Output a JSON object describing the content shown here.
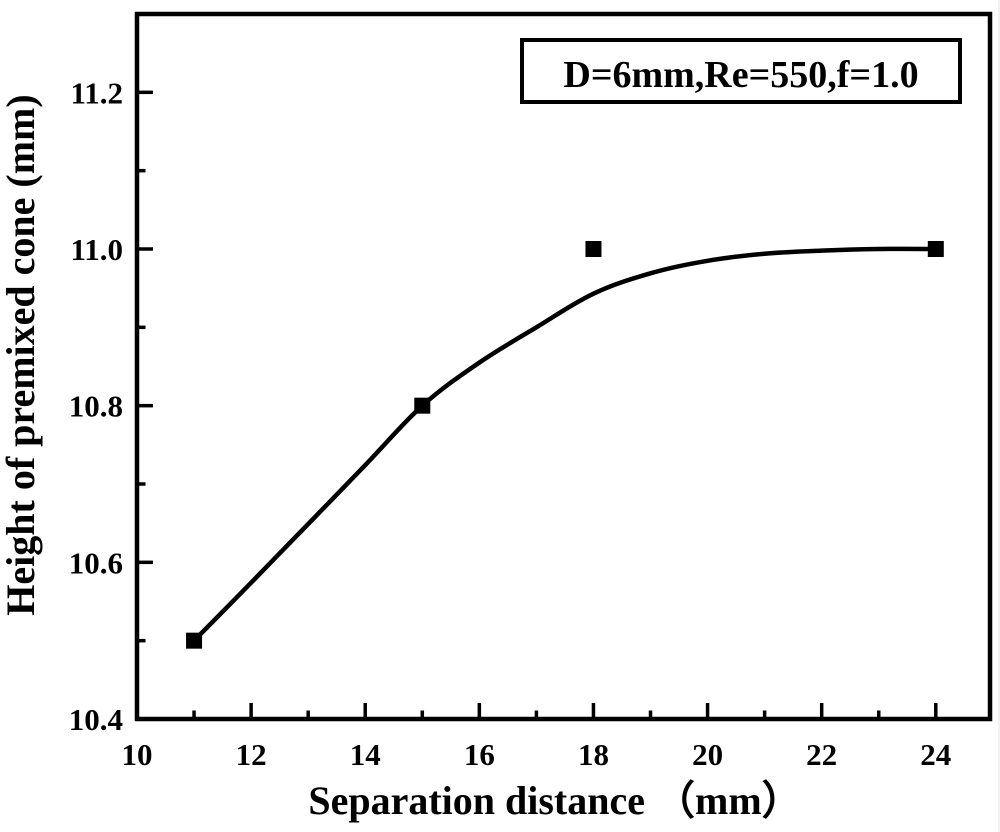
{
  "figure": {
    "background_color": "#ffffff",
    "ink_color": "#000000"
  },
  "chart_data": {
    "type": "line",
    "title": "",
    "xlabel": "Separation distance （mm）",
    "ylabel": "Height of premixed cone (mm)",
    "annotation": "D=6mm,Re=550,f=1.0",
    "legend_position": "top-right-inside",
    "grid": false,
    "xlim": [
      10,
      24.95
    ],
    "ylim": [
      10.4,
      11.3
    ],
    "x_major_ticks": [
      10,
      12,
      14,
      16,
      18,
      20,
      22,
      24
    ],
    "x_tick_labels": [
      "10",
      "12",
      "14",
      "16",
      "18",
      "20",
      "22",
      "24"
    ],
    "x_minor_ticks": [
      11,
      13,
      15,
      17,
      19,
      21,
      23
    ],
    "y_major_ticks": [
      10.4,
      10.6,
      10.8,
      11.0,
      11.2
    ],
    "y_tick_labels": [
      "10.4",
      "10.6",
      "10.8",
      "11.0",
      "11.2"
    ],
    "y_minor_ticks": [
      10.5,
      10.7,
      10.9,
      11.1
    ],
    "series": [
      {
        "name": "height of premixed cone",
        "marker": "filled-square",
        "marker_size_px": 16,
        "color": "#000000",
        "x": [
          11,
          15,
          18,
          24
        ],
        "y": [
          10.5,
          10.8,
          11.0,
          11.0
        ]
      }
    ],
    "fit_curve": [
      [
        11,
        10.5
      ],
      [
        12,
        10.574
      ],
      [
        13,
        10.649
      ],
      [
        14,
        10.724
      ],
      [
        15,
        10.8
      ],
      [
        16,
        10.855
      ],
      [
        17,
        10.9
      ],
      [
        18,
        10.943
      ],
      [
        19,
        10.969
      ],
      [
        20,
        10.985
      ],
      [
        21,
        10.994
      ],
      [
        22,
        10.998
      ],
      [
        23,
        11.0
      ],
      [
        24,
        11.0
      ]
    ]
  }
}
